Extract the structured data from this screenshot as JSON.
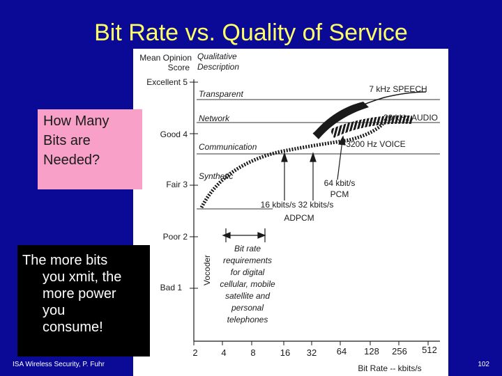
{
  "slide": {
    "title": "Bit Rate vs. Quality of Service",
    "question_lines": [
      "How  Many",
      "Bits are",
      "Needed?"
    ],
    "note_lines": [
      "The more bits",
      "you xmit, the",
      "more power",
      "you",
      "consume!"
    ],
    "footer_left": "ISA Wireless Security, P. Fuhr",
    "page_number": "102"
  },
  "figure": {
    "y_axis_header": [
      "Mean Opinion",
      "Score"
    ],
    "qual_header": [
      "Qualitative",
      "Description"
    ],
    "mos_levels": [
      {
        "label": "Excellent 5",
        "value": 5
      },
      {
        "label": "Good 4",
        "value": 4
      },
      {
        "label": "Fair 3",
        "value": 3
      },
      {
        "label": "Poor 2",
        "value": 2
      },
      {
        "label": "Bad 1",
        "value": 1
      }
    ],
    "quality_bands": [
      {
        "label": "Transparent",
        "value": 4.72
      },
      {
        "label": "Network",
        "value": 4.28
      },
      {
        "label": "Communication",
        "value": 3.68
      },
      {
        "label": "Synthetic",
        "value": 3.08
      }
    ],
    "x_ticks": [
      "2",
      "4",
      "8",
      "16",
      "32",
      "64",
      "128",
      "256",
      "512"
    ],
    "x_axis_label": "Bit Rate -- kbits/s",
    "curve_labels": {
      "speech": "7 kHz SPEECH",
      "audio": "20 kHz AUDIO",
      "voice": "3200 Hz VOICE"
    },
    "annotations": {
      "pcm": [
        "64 kbit/s",
        "PCM"
      ],
      "adpcm_rates": "16 kbits/s 32 kbits/s",
      "adpcm": "ADPCM",
      "vocoder": "Vocoder",
      "bitrate_req": [
        "Bit rate",
        "requirements",
        "for digital",
        "cellular, mobile",
        "satellite and",
        "personal",
        "telephones"
      ]
    }
  }
}
